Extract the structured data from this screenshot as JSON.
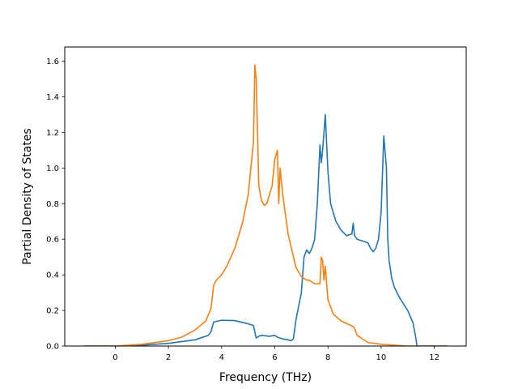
{
  "chart_data": {
    "type": "line",
    "title": "",
    "xlabel": "Frequency (THz)",
    "ylabel": "Partial Density of States",
    "xlim": [
      -1.9,
      13.2
    ],
    "ylim": [
      0,
      1.68
    ],
    "xticks": [
      0,
      2,
      4,
      6,
      8,
      10,
      12
    ],
    "yticks": [
      0.0,
      0.2,
      0.4,
      0.6,
      0.8,
      1.0,
      1.2,
      1.4,
      1.6
    ],
    "xtick_labels": [
      "0",
      "2",
      "4",
      "6",
      "8",
      "10",
      "12"
    ],
    "ytick_labels": [
      "0.0",
      "0.2",
      "0.4",
      "0.6",
      "0.8",
      "1.0",
      "1.2",
      "1.4",
      "1.6"
    ],
    "grid": false,
    "legend": "none",
    "series": [
      {
        "color": "#1f77b4",
        "x": [
          -1.2,
          0,
          1.0,
          2.0,
          3.0,
          3.5,
          3.6,
          3.7,
          4.0,
          4.5,
          5.0,
          5.2,
          5.3,
          5.4,
          5.5,
          5.8,
          6.0,
          6.1,
          6.3,
          6.5,
          6.6,
          6.7,
          6.8,
          7.0,
          7.1,
          7.2,
          7.3,
          7.4,
          7.5,
          7.6,
          7.7,
          7.75,
          7.8,
          7.85,
          7.9,
          8.0,
          8.1,
          8.3,
          8.5,
          8.7,
          8.9,
          8.95,
          9.0,
          9.1,
          9.3,
          9.5,
          9.6,
          9.7,
          9.8,
          9.9,
          10.0,
          10.1,
          10.2,
          10.25,
          10.3,
          10.4,
          10.5,
          10.7,
          11.0,
          11.2,
          11.3,
          11.35,
          12.5
        ],
        "y": [
          0.0,
          0.0,
          0.005,
          0.015,
          0.035,
          0.06,
          0.08,
          0.135,
          0.145,
          0.143,
          0.125,
          0.115,
          0.045,
          0.055,
          0.06,
          0.055,
          0.06,
          0.05,
          0.04,
          0.035,
          0.03,
          0.04,
          0.15,
          0.3,
          0.5,
          0.54,
          0.52,
          0.55,
          0.6,
          0.8,
          1.13,
          1.03,
          1.1,
          1.2,
          1.3,
          0.98,
          0.8,
          0.7,
          0.65,
          0.62,
          0.63,
          0.69,
          0.62,
          0.6,
          0.59,
          0.58,
          0.55,
          0.53,
          0.55,
          0.6,
          0.75,
          1.18,
          1.0,
          0.6,
          0.48,
          0.38,
          0.33,
          0.27,
          0.2,
          0.13,
          0.05,
          0.0,
          0.0
        ]
      },
      {
        "color": "#ff7f0e",
        "x": [
          -1.2,
          0,
          1.0,
          2.0,
          2.5,
          3.0,
          3.4,
          3.6,
          3.7,
          3.8,
          4.0,
          4.2,
          4.5,
          4.8,
          5.0,
          5.1,
          5.2,
          5.25,
          5.3,
          5.4,
          5.5,
          5.6,
          5.7,
          5.9,
          6.0,
          6.1,
          6.15,
          6.2,
          6.3,
          6.5,
          6.8,
          7.0,
          7.2,
          7.3,
          7.4,
          7.5,
          7.6,
          7.7,
          7.75,
          7.8,
          7.85,
          7.9,
          8.0,
          8.2,
          8.5,
          8.8,
          8.95,
          9.0,
          9.1,
          9.5,
          10.0,
          10.5,
          11.0,
          12.5
        ],
        "y": [
          0.0,
          0.0,
          0.01,
          0.03,
          0.05,
          0.09,
          0.14,
          0.21,
          0.34,
          0.37,
          0.4,
          0.45,
          0.55,
          0.7,
          0.85,
          1.0,
          1.15,
          1.58,
          1.5,
          0.9,
          0.82,
          0.79,
          0.8,
          0.9,
          1.05,
          1.1,
          0.8,
          1.0,
          0.85,
          0.63,
          0.44,
          0.39,
          0.37,
          0.37,
          0.36,
          0.35,
          0.35,
          0.35,
          0.5,
          0.48,
          0.37,
          0.45,
          0.26,
          0.18,
          0.14,
          0.12,
          0.11,
          0.1,
          0.06,
          0.02,
          0.01,
          0.005,
          0.0,
          0.0
        ]
      }
    ]
  }
}
